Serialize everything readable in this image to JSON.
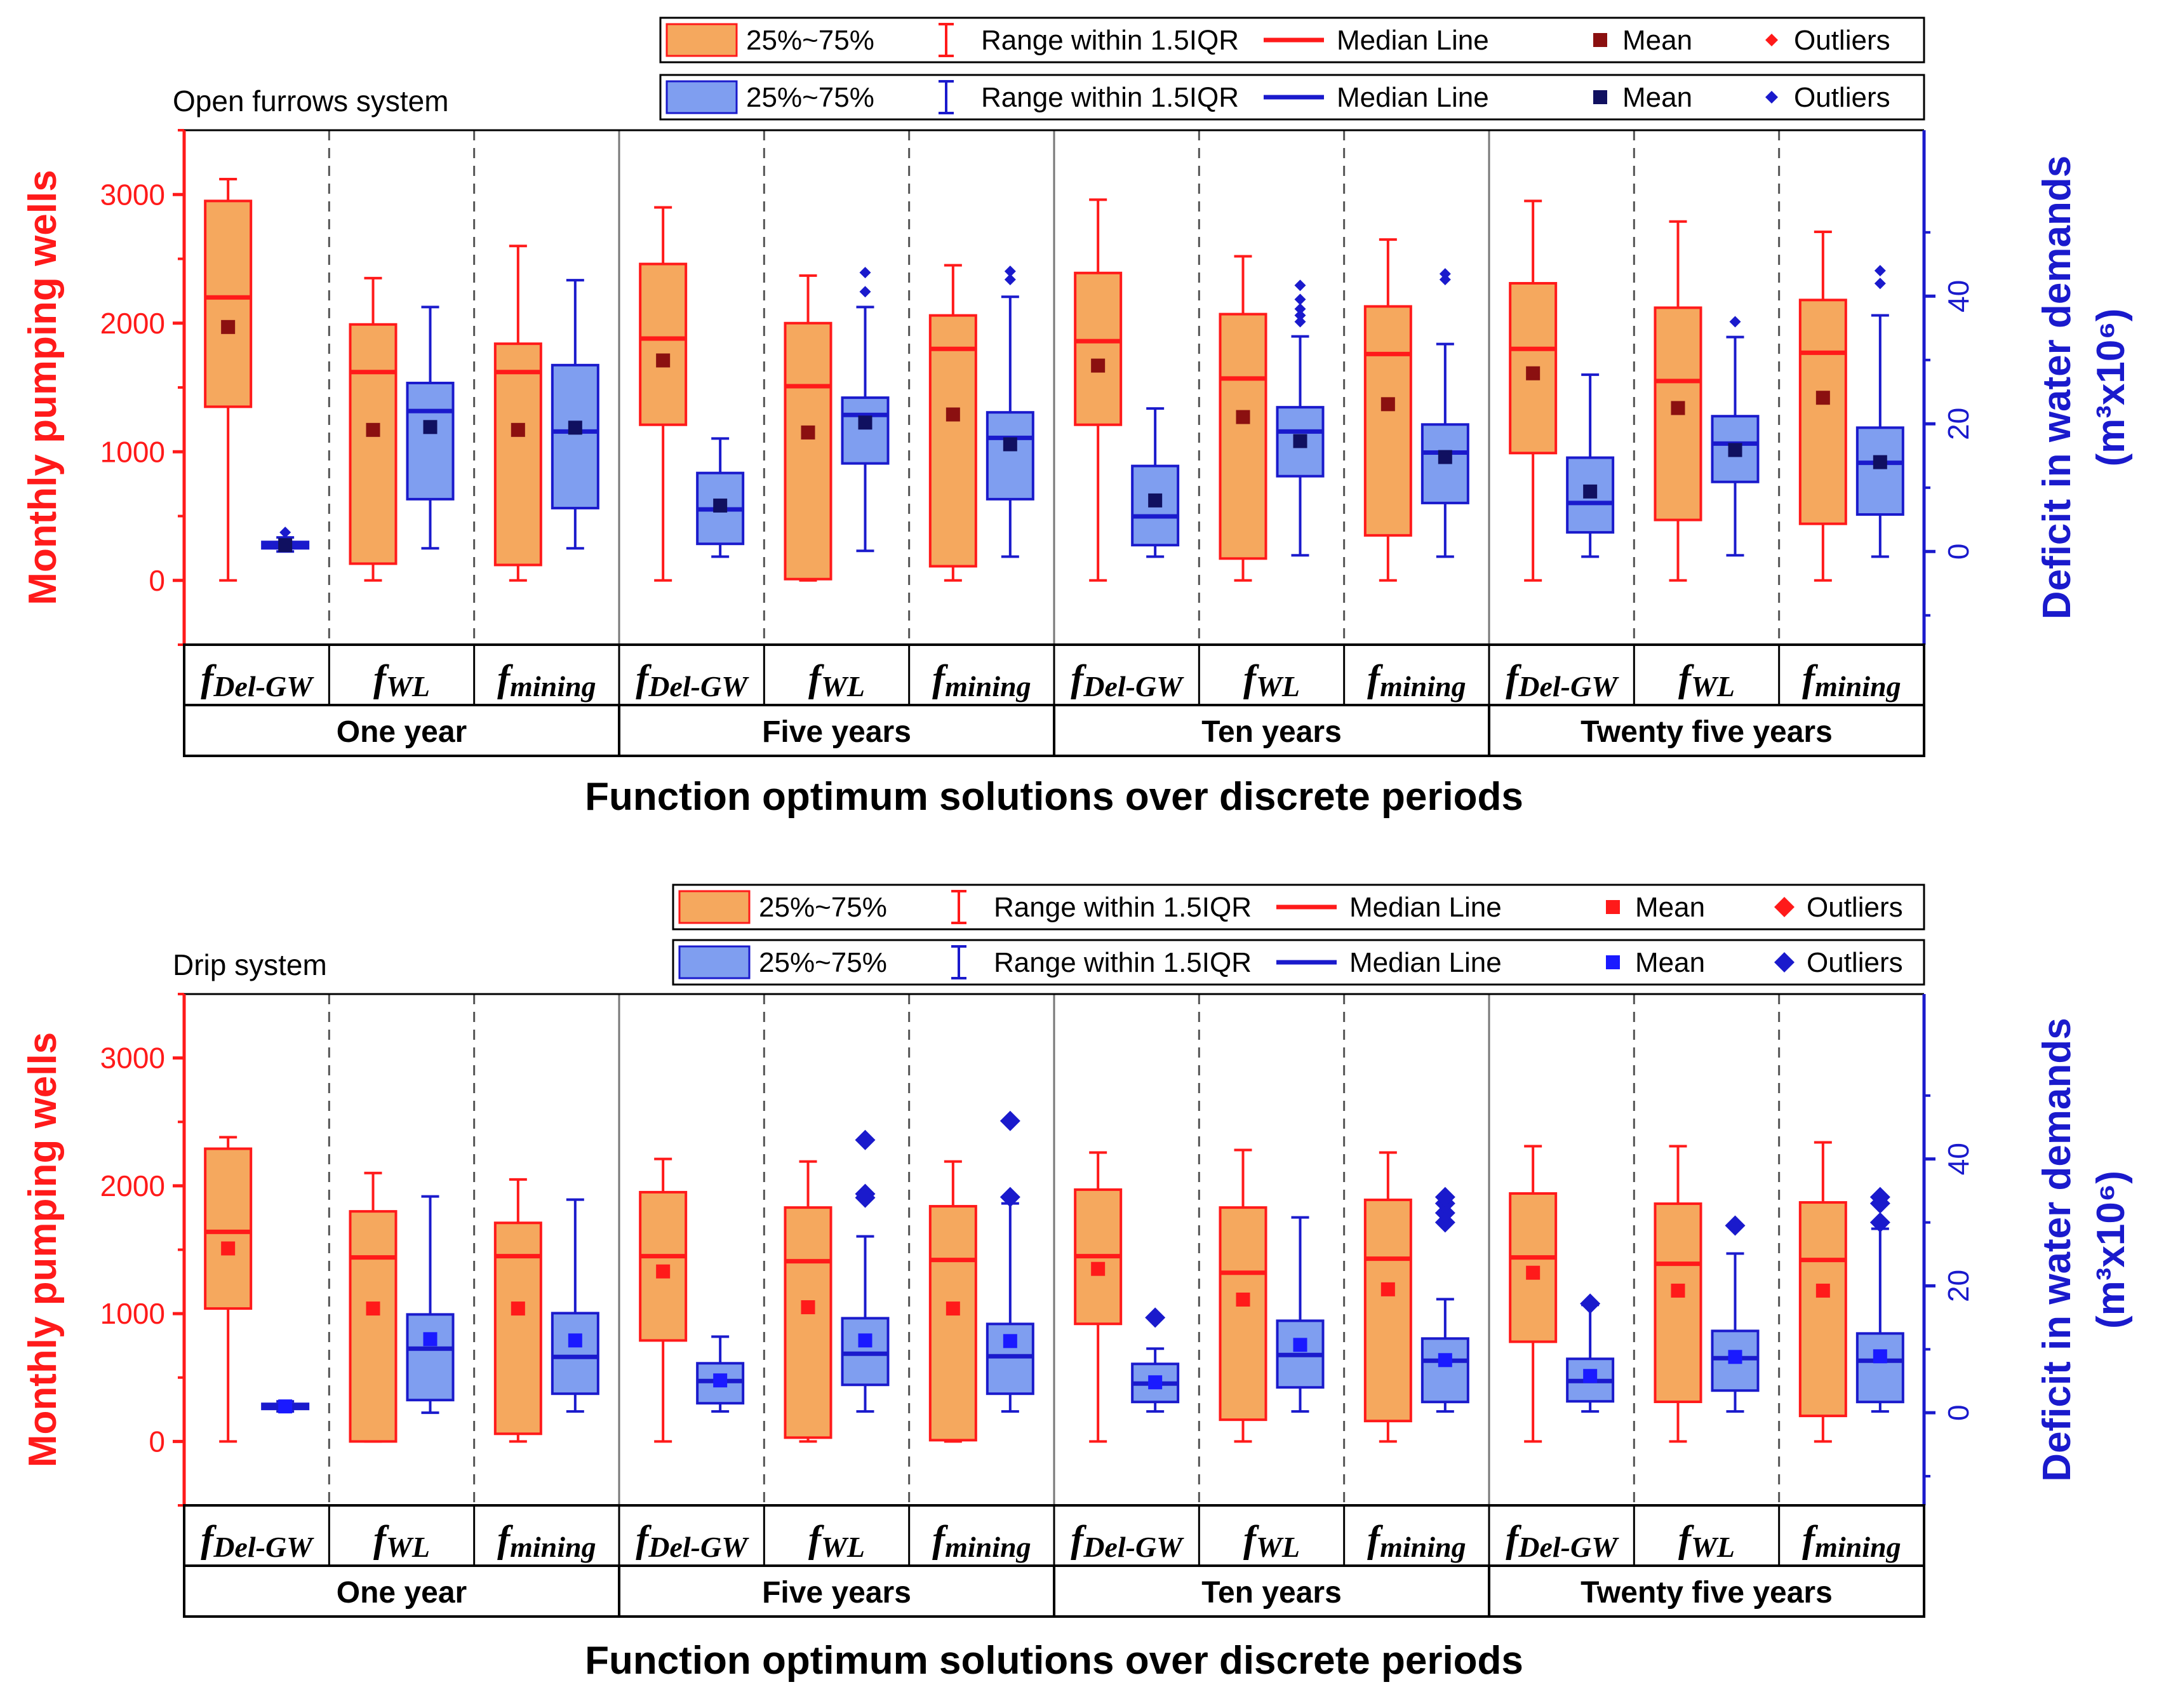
{
  "colors": {
    "red": "#ff1a1a",
    "orange_fill": "#f5a85e",
    "blue": "#1a1acc",
    "blue_fill": "#7f9ef0",
    "mean_red_dark": "#8b1010",
    "mean_blue_dark": "#101060",
    "mean_red_bright": "#ff1a1a",
    "mean_blue_bright": "#1a1aff"
  },
  "chart_data": [
    {
      "type": "box",
      "system_label": "Open furrows system",
      "x_title": "Function optimum solutions over discrete periods",
      "y_left_title": "Monthly pumping wells",
      "y_right_title": "Deficit in water demands",
      "y_right_unit": "(m³x10⁶)",
      "y_left_range": [
        -500,
        3500
      ],
      "y_left_ticks": [
        "0",
        "1000",
        "2000",
        "3000"
      ],
      "y_right_range": [
        -14.6,
        66
      ],
      "y_right_ticks": [
        "0",
        "20",
        "40"
      ],
      "legend_red": [
        "25%~75%",
        "Range within 1.5IQR",
        "Median Line",
        "Mean",
        "Outliers"
      ],
      "legend_blue": [
        "25%~75%",
        "Range within 1.5IQR",
        "Median Line",
        "Mean",
        "Outliers"
      ],
      "periods": [
        "One year",
        "Five years",
        "Ten years",
        "Twenty five years"
      ],
      "functions": [
        {
          "base": "f",
          "sub": "Del-GW"
        },
        {
          "base": "f",
          "sub": "WL"
        },
        {
          "base": "f",
          "sub": "mining"
        }
      ],
      "red_series": [
        {
          "q1": 1350,
          "q3": 2950,
          "median": 2200,
          "mean": 1970,
          "min": 0,
          "max": 3120
        },
        {
          "q1": 130,
          "q3": 1990,
          "median": 1620,
          "mean": 1170,
          "min": 0,
          "max": 2350
        },
        {
          "q1": 120,
          "q3": 1840,
          "median": 1620,
          "mean": 1170,
          "min": 0,
          "max": 2600
        },
        {
          "q1": 1210,
          "q3": 2460,
          "median": 1880,
          "mean": 1710,
          "min": 0,
          "max": 2900
        },
        {
          "q1": 10,
          "q3": 2000,
          "median": 1510,
          "mean": 1150,
          "min": 0,
          "max": 2370
        },
        {
          "q1": 110,
          "q3": 2060,
          "median": 1800,
          "mean": 1290,
          "min": 0,
          "max": 2450
        },
        {
          "q1": 1210,
          "q3": 2390,
          "median": 1860,
          "mean": 1670,
          "min": 0,
          "max": 2960
        },
        {
          "q1": 170,
          "q3": 2070,
          "median": 1570,
          "mean": 1270,
          "min": 0,
          "max": 2520
        },
        {
          "q1": 350,
          "q3": 2130,
          "median": 1760,
          "mean": 1370,
          "min": 0,
          "max": 2650
        },
        {
          "q1": 990,
          "q3": 2310,
          "median": 1800,
          "mean": 1610,
          "min": 0,
          "max": 2950
        },
        {
          "q1": 470,
          "q3": 2120,
          "median": 1550,
          "mean": 1340,
          "min": 0,
          "max": 2790
        },
        {
          "q1": 440,
          "q3": 2180,
          "median": 1770,
          "mean": 1420,
          "min": 0,
          "max": 2710
        }
      ],
      "blue_series": [
        {
          "q1": 0.5,
          "q3": 1.5,
          "median": 1.0,
          "mean": 1.0,
          "min": 0.0,
          "max": 2.2,
          "outliers": [
            3.0
          ]
        },
        {
          "q1": 8.2,
          "q3": 26.4,
          "median": 22.0,
          "mean": 19.5,
          "min": 0.5,
          "max": 38.3,
          "outliers": []
        },
        {
          "q1": 6.8,
          "q3": 29.2,
          "median": 18.8,
          "mean": 19.4,
          "min": 0.5,
          "max": 42.5,
          "outliers": []
        },
        {
          "q1": 1.2,
          "q3": 12.3,
          "median": 6.6,
          "mean": 7.2,
          "min": -0.8,
          "max": 17.7,
          "outliers": []
        },
        {
          "q1": 13.8,
          "q3": 24.1,
          "median": 21.4,
          "mean": 20.2,
          "min": 0.1,
          "max": 38.3,
          "outliers": [
            40.7,
            43.7
          ]
        },
        {
          "q1": 8.2,
          "q3": 21.8,
          "median": 17.8,
          "mean": 16.8,
          "min": -0.8,
          "max": 39.9,
          "outliers": [
            42.6,
            43.9
          ]
        },
        {
          "q1": 1.0,
          "q3": 13.4,
          "median": 5.5,
          "mean": 8.0,
          "min": -0.8,
          "max": 22.4,
          "outliers": []
        },
        {
          "q1": 11.8,
          "q3": 22.6,
          "median": 18.8,
          "mean": 17.3,
          "min": -0.6,
          "max": 33.7,
          "outliers": [
            36.0,
            37.0,
            38.0,
            39.5,
            41.7
          ]
        },
        {
          "q1": 7.6,
          "q3": 19.9,
          "median": 15.5,
          "mean": 14.8,
          "min": -0.8,
          "max": 32.5,
          "outliers": [
            42.6,
            43.5
          ]
        },
        {
          "q1": 3.0,
          "q3": 14.7,
          "median": 7.6,
          "mean": 9.4,
          "min": -0.8,
          "max": 27.7,
          "outliers": []
        },
        {
          "q1": 10.9,
          "q3": 21.2,
          "median": 16.9,
          "mean": 15.9,
          "min": -0.6,
          "max": 33.6,
          "outliers": [
            36.0
          ]
        },
        {
          "q1": 5.8,
          "q3": 19.4,
          "median": 13.9,
          "mean": 14.0,
          "min": -0.8,
          "max": 37.0,
          "outliers": [
            42.0,
            44.0
          ]
        }
      ]
    },
    {
      "type": "box",
      "system_label": "Drip system",
      "x_title": "Function optimum solutions over discrete periods",
      "y_left_title": "Monthly pumping wells",
      "y_right_title": "Deficit in water demands",
      "y_right_unit": "(m³x10⁶)",
      "y_left_range": [
        -500,
        3500
      ],
      "y_left_ticks": [
        "0",
        "1000",
        "2000",
        "3000"
      ],
      "y_right_range": [
        -14.6,
        66
      ],
      "y_right_ticks": [
        "0",
        "20",
        "40"
      ],
      "legend_red": [
        "25%~75%",
        "Range within 1.5IQR",
        "Median Line",
        "Mean",
        "Outliers"
      ],
      "legend_blue": [
        "25%~75%",
        "Range within 1.5IQR",
        "Median Line",
        "Mean",
        "Outliers"
      ],
      "periods": [
        "One year",
        "Five years",
        "Ten years",
        "Twenty five years"
      ],
      "functions": [
        {
          "base": "f",
          "sub": "Del-GW"
        },
        {
          "base": "f",
          "sub": "WL"
        },
        {
          "base": "f",
          "sub": "mining"
        }
      ],
      "red_series": [
        {
          "q1": 1040,
          "q3": 2290,
          "median": 1640,
          "mean": 1510,
          "min": 0,
          "max": 2380
        },
        {
          "q1": 0,
          "q3": 1800,
          "median": 1440,
          "mean": 1040,
          "min": 0,
          "max": 2100
        },
        {
          "q1": 60,
          "q3": 1710,
          "median": 1450,
          "mean": 1040,
          "min": 0,
          "max": 2050
        },
        {
          "q1": 790,
          "q3": 1950,
          "median": 1450,
          "mean": 1330,
          "min": 0,
          "max": 2210
        },
        {
          "q1": 30,
          "q3": 1830,
          "median": 1410,
          "mean": 1050,
          "min": 0,
          "max": 2190
        },
        {
          "q1": 10,
          "q3": 1840,
          "median": 1420,
          "mean": 1040,
          "min": 0,
          "max": 2190
        },
        {
          "q1": 920,
          "q3": 1970,
          "median": 1450,
          "mean": 1350,
          "min": 0,
          "max": 2260
        },
        {
          "q1": 170,
          "q3": 1830,
          "median": 1320,
          "mean": 1110,
          "min": 0,
          "max": 2280
        },
        {
          "q1": 160,
          "q3": 1890,
          "median": 1430,
          "mean": 1190,
          "min": 0,
          "max": 2260
        },
        {
          "q1": 780,
          "q3": 1940,
          "median": 1440,
          "mean": 1320,
          "min": 0,
          "max": 2310
        },
        {
          "q1": 310,
          "q3": 1860,
          "median": 1390,
          "mean": 1180,
          "min": 0,
          "max": 2310
        },
        {
          "q1": 200,
          "q3": 1870,
          "median": 1420,
          "mean": 1180,
          "min": 0,
          "max": 2340
        }
      ],
      "blue_series": [
        {
          "q1": 0.6,
          "q3": 1.4,
          "median": 1.0,
          "mean": 1.0,
          "min": 0.2,
          "max": 1.8,
          "outliers": []
        },
        {
          "q1": 2.0,
          "q3": 15.5,
          "median": 10.1,
          "mean": 11.6,
          "min": 0.0,
          "max": 34.1,
          "outliers": []
        },
        {
          "q1": 3.0,
          "q3": 15.7,
          "median": 8.8,
          "mean": 11.4,
          "min": 0.2,
          "max": 33.6,
          "outliers": []
        },
        {
          "q1": 1.5,
          "q3": 7.8,
          "median": 5.0,
          "mean": 5.1,
          "min": 0.2,
          "max": 12.0,
          "outliers": []
        },
        {
          "q1": 4.4,
          "q3": 14.9,
          "median": 9.3,
          "mean": 11.4,
          "min": 0.2,
          "max": 27.8,
          "outliers": [
            33.9,
            34.5,
            43.0
          ]
        },
        {
          "q1": 3.0,
          "q3": 14.0,
          "median": 8.9,
          "mean": 11.3,
          "min": 0.2,
          "max": 33.0,
          "outliers": [
            34.0,
            46.0
          ]
        },
        {
          "q1": 1.7,
          "q3": 7.7,
          "median": 4.6,
          "mean": 4.8,
          "min": 0.2,
          "max": 10.1,
          "outliers": [
            15.0
          ]
        },
        {
          "q1": 4.0,
          "q3": 14.5,
          "median": 9.1,
          "mean": 10.7,
          "min": 0.2,
          "max": 30.8,
          "outliers": []
        },
        {
          "q1": 1.7,
          "q3": 11.7,
          "median": 8.2,
          "mean": 8.3,
          "min": 0.2,
          "max": 17.9,
          "outliers": [
            30.0,
            31.5,
            33.0,
            34.0
          ]
        },
        {
          "q1": 1.8,
          "q3": 8.5,
          "median": 5.0,
          "mean": 5.8,
          "min": 0.2,
          "max": 17.0,
          "outliers": [
            17.2
          ]
        },
        {
          "q1": 3.5,
          "q3": 12.9,
          "median": 8.6,
          "mean": 8.8,
          "min": 0.2,
          "max": 25.1,
          "outliers": [
            29.5
          ]
        },
        {
          "q1": 1.7,
          "q3": 12.5,
          "median": 8.2,
          "mean": 8.9,
          "min": 0.2,
          "max": 29.0,
          "outliers": [
            30.0,
            33.0,
            34.0
          ]
        }
      ]
    }
  ]
}
